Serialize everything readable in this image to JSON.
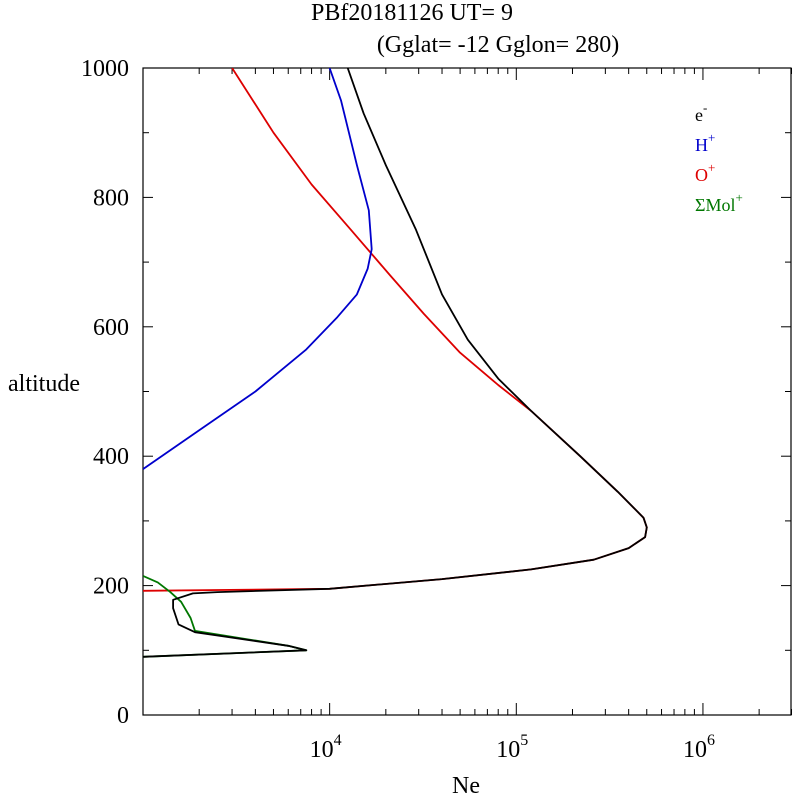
{
  "chart_data": {
    "type": "line",
    "title": "PBf20181126   UT=  9",
    "subtitle": "(Gglat= -12   Gglon=  280)",
    "xlabel": "Ne",
    "ylabel": "altitude",
    "x_scale": "log",
    "xlim": [
      1000,
      3000000
    ],
    "ylim": [
      0,
      1000
    ],
    "x_ticks": [
      {
        "base": "10",
        "exp": "4",
        "value": 10000
      },
      {
        "base": "10",
        "exp": "5",
        "value": 100000
      },
      {
        "base": "10",
        "exp": "6",
        "value": 1000000
      }
    ],
    "y_ticks": [
      "0",
      "200",
      "400",
      "600",
      "800",
      "1000"
    ],
    "legend_position": "top-right",
    "grid": false,
    "series": [
      {
        "name": "e",
        "sup": "-",
        "color": "#000000",
        "points": [
          [
            1000,
            90
          ],
          [
            7500,
            100
          ],
          [
            6000,
            107
          ],
          [
            1900,
            128
          ],
          [
            1550,
            140
          ],
          [
            1450,
            165
          ],
          [
            1450,
            178
          ],
          [
            1850,
            188
          ],
          [
            2500,
            190
          ],
          [
            10000,
            195
          ],
          [
            40000,
            210
          ],
          [
            120000,
            225
          ],
          [
            260000,
            240
          ],
          [
            400000,
            258
          ],
          [
            490000,
            275
          ],
          [
            500000,
            290
          ],
          [
            480000,
            305
          ],
          [
            350000,
            345
          ],
          [
            220000,
            400
          ],
          [
            120000,
            470
          ],
          [
            80000,
            520
          ],
          [
            55000,
            580
          ],
          [
            40000,
            650
          ],
          [
            29000,
            750
          ],
          [
            20000,
            850
          ],
          [
            15200,
            930
          ],
          [
            12500,
            1000
          ]
        ]
      },
      {
        "name": "H",
        "sup": "+",
        "color": "#0000cc",
        "points": [
          [
            1000,
            380
          ],
          [
            2000,
            440
          ],
          [
            4000,
            500
          ],
          [
            7500,
            565
          ],
          [
            11000,
            615
          ],
          [
            14000,
            650
          ],
          [
            16000,
            690
          ],
          [
            16800,
            720
          ],
          [
            16200,
            780
          ],
          [
            14000,
            850
          ],
          [
            11500,
            950
          ],
          [
            10000,
            1000
          ]
        ]
      },
      {
        "name": "O",
        "sup": "+",
        "color": "#dd0000",
        "points": [
          [
            1000,
            192
          ],
          [
            10000,
            195
          ],
          [
            40000,
            210
          ],
          [
            120000,
            225
          ],
          [
            260000,
            240
          ],
          [
            400000,
            258
          ],
          [
            490000,
            275
          ],
          [
            500000,
            290
          ],
          [
            480000,
            305
          ],
          [
            350000,
            345
          ],
          [
            220000,
            400
          ],
          [
            120000,
            470
          ],
          [
            80000,
            510
          ],
          [
            50000,
            560
          ],
          [
            32000,
            620
          ],
          [
            21000,
            680
          ],
          [
            13000,
            750
          ],
          [
            8000,
            820
          ],
          [
            5000,
            900
          ],
          [
            3000,
            1000
          ]
        ]
      },
      {
        "name": "ΣMol",
        "sup": "+",
        "color": "#007700",
        "points": [
          [
            1000,
            215
          ],
          [
            1200,
            205
          ],
          [
            1400,
            190
          ],
          [
            1600,
            175
          ],
          [
            1800,
            150
          ],
          [
            1900,
            130
          ],
          [
            6000,
            107
          ],
          [
            7500,
            100
          ],
          [
            1000,
            90
          ]
        ]
      }
    ]
  }
}
